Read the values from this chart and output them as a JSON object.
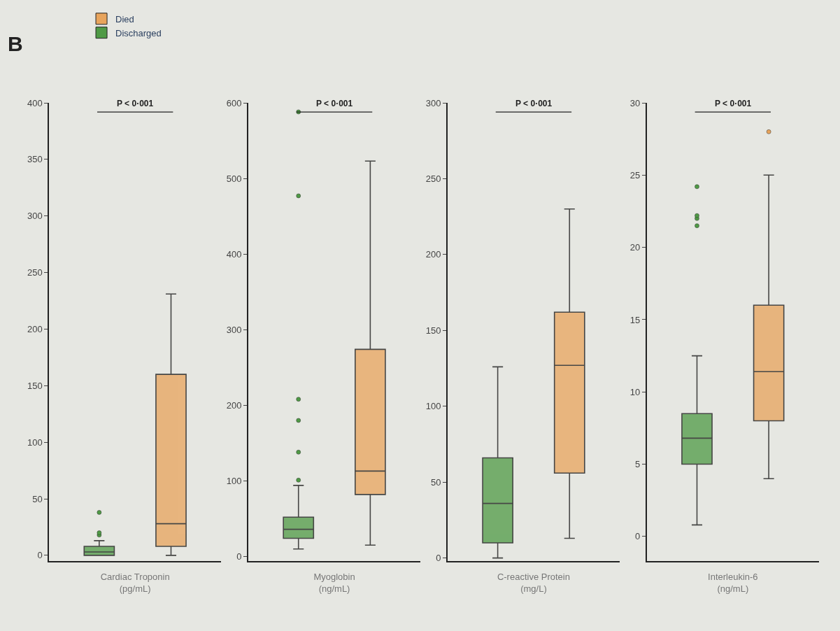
{
  "chart_data": [
    {
      "type": "box",
      "title": "B",
      "xlabel": "Cardiac Troponin\n(pg/mL)",
      "annotations": [
        "P < 0·001"
      ],
      "categories": [
        null,
        null
      ],
      "ylim": [
        -5,
        400
      ],
      "yticks": [
        0,
        50,
        100,
        150,
        200,
        250,
        300,
        350,
        400
      ],
      "grid": false,
      "legend": "top left",
      "series": [
        {
          "name": "Died",
          "color": "#e8a45c",
          "boxes": [
            null,
            {
              "low": 0,
              "q1": 8,
              "median": 28,
              "q3": 160,
              "high": 231
            }
          ]
        },
        {
          "name": "Discharged",
          "color": "#4f9a45",
          "boxes": [
            {
              "low": 0,
              "q1": 0,
              "median": 3,
              "q3": 8,
              "high": 13,
              "outliers": [
                18,
                20,
                38
              ]
            },
            null
          ]
        }
      ]
    },
    {
      "type": "box",
      "xlabel": "Myoglobin\n(ng/mL)",
      "annotations": [
        "P < 0·001"
      ],
      "categories": [
        null,
        null
      ],
      "ylim": [
        -6,
        600
      ],
      "yticks": [
        0,
        100,
        200,
        300,
        400,
        500,
        600
      ],
      "grid": false,
      "series": [
        {
          "color": "#e8a45c",
          "boxes": [
            null,
            {
              "low": 15,
              "q1": 82,
              "median": 113,
              "q3": 274,
              "high": 523
            }
          ]
        },
        {
          "color": "#4f9a45",
          "boxes": [
            {
              "low": 10,
              "q1": 24,
              "median": 36,
              "q3": 52,
              "high": 94,
              "outliers": [
                101,
                138,
                180,
                208,
                477,
                588
              ]
            },
            null
          ]
        }
      ]
    },
    {
      "type": "box",
      "xlabel": "C-reactive Protein\n(mg/L)",
      "annotations": [
        "P < 0·001"
      ],
      "categories": [
        null,
        null
      ],
      "ylim": [
        -2,
        300
      ],
      "yticks": [
        0,
        50,
        100,
        150,
        200,
        250,
        300
      ],
      "grid": false,
      "series": [
        {
          "color": "#e8a45c",
          "boxes": [
            null,
            {
              "low": 13,
              "q1": 56,
              "median": 127,
              "q3": 162,
              "high": 230
            }
          ]
        },
        {
          "color": "#4f9a45",
          "boxes": [
            {
              "low": 0,
              "q1": 10,
              "median": 36,
              "q3": 66,
              "high": 126
            },
            null
          ]
        }
      ]
    },
    {
      "type": "box",
      "xlabel": "Interleukin-6\n(ng/mL)",
      "annotations": [
        "P < 0·001"
      ],
      "categories": [
        null,
        null
      ],
      "ylim": [
        -1.7,
        30
      ],
      "yticks": [
        0,
        5,
        10,
        15,
        20,
        25,
        30
      ],
      "grid": false,
      "series": [
        {
          "color": "#e8a45c",
          "boxes": [
            null,
            {
              "low": 4,
              "q1": 8,
              "median": 11.4,
              "q3": 16,
              "high": 25,
              "outliers": [
                28
              ]
            }
          ]
        },
        {
          "color": "#4f9a45",
          "boxes": [
            {
              "low": 0.8,
              "q1": 5,
              "median": 6.8,
              "q3": 8.5,
              "high": 12.5,
              "outliers": [
                21.5,
                22,
                22.2,
                24.2
              ]
            },
            null
          ]
        }
      ]
    }
  ]
}
